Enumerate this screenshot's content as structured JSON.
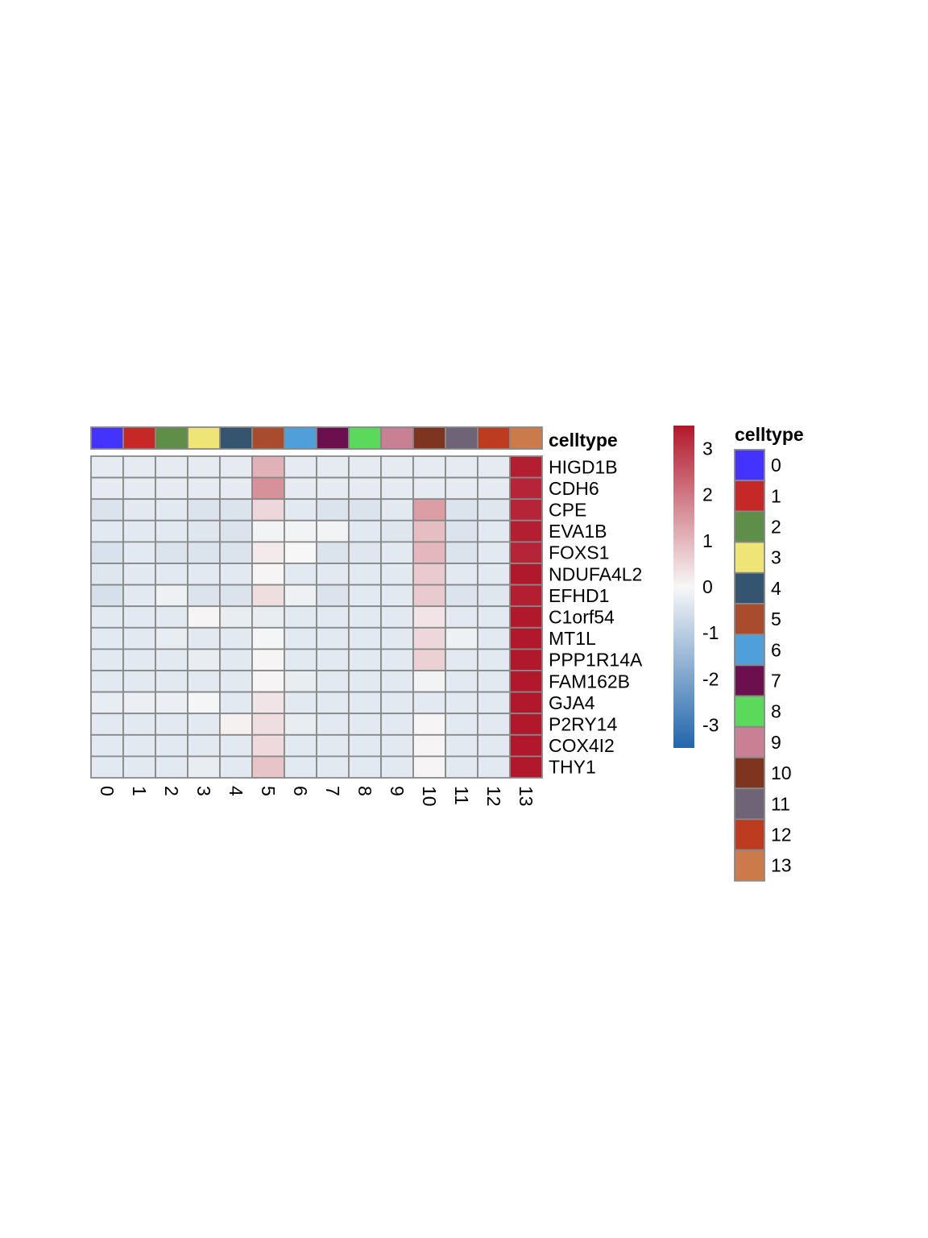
{
  "chart_data": {
    "type": "heatmap",
    "annotation_label": "celltype",
    "columns": [
      "0",
      "1",
      "2",
      "3",
      "4",
      "5",
      "6",
      "7",
      "8",
      "9",
      "10",
      "11",
      "12",
      "13"
    ],
    "rows": [
      "HIGD1B",
      "CDH6",
      "CPE",
      "EVA1B",
      "FOXS1",
      "NDUFA4L2",
      "EFHD1",
      "C1orf54",
      "MT1L",
      "PPP1R14A",
      "FAM162B",
      "GJA4",
      "P2RY14",
      "COX4I2",
      "THY1"
    ],
    "values": [
      [
        -0.3,
        -0.3,
        -0.3,
        -0.3,
        -0.3,
        1.1,
        -0.3,
        -0.3,
        -0.3,
        -0.3,
        -0.3,
        -0.3,
        -0.3,
        3.4
      ],
      [
        -0.3,
        -0.3,
        -0.3,
        -0.3,
        -0.3,
        1.6,
        -0.3,
        -0.3,
        -0.3,
        -0.3,
        -0.3,
        -0.3,
        -0.3,
        3.3
      ],
      [
        -0.45,
        -0.35,
        -0.35,
        -0.45,
        -0.45,
        0.5,
        -0.35,
        -0.45,
        -0.45,
        -0.35,
        1.4,
        -0.45,
        -0.4,
        3.3
      ],
      [
        -0.35,
        -0.35,
        -0.35,
        -0.4,
        -0.45,
        -0.1,
        -0.1,
        -0.1,
        -0.35,
        -0.4,
        0.9,
        -0.45,
        -0.35,
        3.4
      ],
      [
        -0.5,
        -0.35,
        -0.45,
        -0.45,
        -0.45,
        0.2,
        0.0,
        -0.45,
        -0.4,
        -0.35,
        1.0,
        -0.45,
        -0.35,
        3.3
      ],
      [
        -0.4,
        -0.35,
        -0.35,
        -0.35,
        -0.35,
        0.05,
        -0.35,
        -0.35,
        -0.35,
        -0.35,
        0.7,
        -0.35,
        -0.35,
        3.5
      ],
      [
        -0.55,
        -0.35,
        -0.15,
        -0.45,
        -0.45,
        0.4,
        -0.15,
        -0.45,
        -0.35,
        -0.35,
        0.7,
        -0.45,
        -0.4,
        3.4
      ],
      [
        -0.35,
        -0.35,
        -0.35,
        0.05,
        -0.25,
        -0.25,
        -0.35,
        -0.35,
        -0.35,
        -0.35,
        0.3,
        -0.35,
        -0.35,
        3.5
      ],
      [
        -0.35,
        -0.35,
        -0.25,
        -0.35,
        -0.35,
        -0.05,
        -0.35,
        -0.35,
        -0.35,
        -0.35,
        0.5,
        -0.15,
        -0.35,
        3.5
      ],
      [
        -0.35,
        -0.35,
        -0.35,
        -0.25,
        -0.35,
        0.05,
        -0.35,
        -0.35,
        -0.35,
        -0.35,
        0.6,
        -0.35,
        -0.35,
        3.5
      ],
      [
        -0.35,
        -0.35,
        -0.35,
        -0.35,
        -0.35,
        0.05,
        -0.25,
        -0.35,
        -0.35,
        -0.35,
        -0.1,
        -0.35,
        -0.35,
        3.5
      ],
      [
        -0.25,
        -0.2,
        -0.2,
        -0.05,
        -0.35,
        0.3,
        -0.35,
        -0.35,
        -0.35,
        -0.35,
        -0.35,
        -0.35,
        -0.35,
        3.5
      ],
      [
        -0.35,
        -0.35,
        -0.35,
        -0.35,
        0.1,
        0.4,
        -0.25,
        -0.35,
        -0.35,
        -0.35,
        0.05,
        -0.35,
        -0.35,
        3.5
      ],
      [
        -0.35,
        -0.35,
        -0.35,
        -0.35,
        -0.35,
        0.45,
        -0.35,
        -0.35,
        -0.35,
        -0.35,
        0.05,
        -0.35,
        -0.35,
        3.5
      ],
      [
        -0.35,
        -0.35,
        -0.35,
        -0.25,
        -0.35,
        0.8,
        -0.35,
        -0.35,
        -0.35,
        -0.35,
        0.05,
        -0.35,
        -0.35,
        3.5
      ]
    ],
    "celltype_colors": [
      "#4433FF",
      "#C62828",
      "#5E8E47",
      "#EFE476",
      "#35546F",
      "#A94C2E",
      "#4FA0DA",
      "#6B0F4F",
      "#5BD95B",
      "#C97F94",
      "#7E3520",
      "#6F6477",
      "#BD3B1E",
      "#CD7A4A"
    ],
    "colorbar": {
      "range": [
        -3.5,
        3.5
      ],
      "ticks": [
        "3",
        "2",
        "1",
        "0",
        "-1",
        "-2",
        "-3"
      ],
      "colors": [
        "#2166AC",
        "#F7F7F7",
        "#B2182B"
      ]
    },
    "legend": {
      "title": "celltype",
      "labels": [
        "0",
        "1",
        "2",
        "3",
        "4",
        "5",
        "6",
        "7",
        "8",
        "9",
        "10",
        "11",
        "12",
        "13"
      ]
    }
  }
}
